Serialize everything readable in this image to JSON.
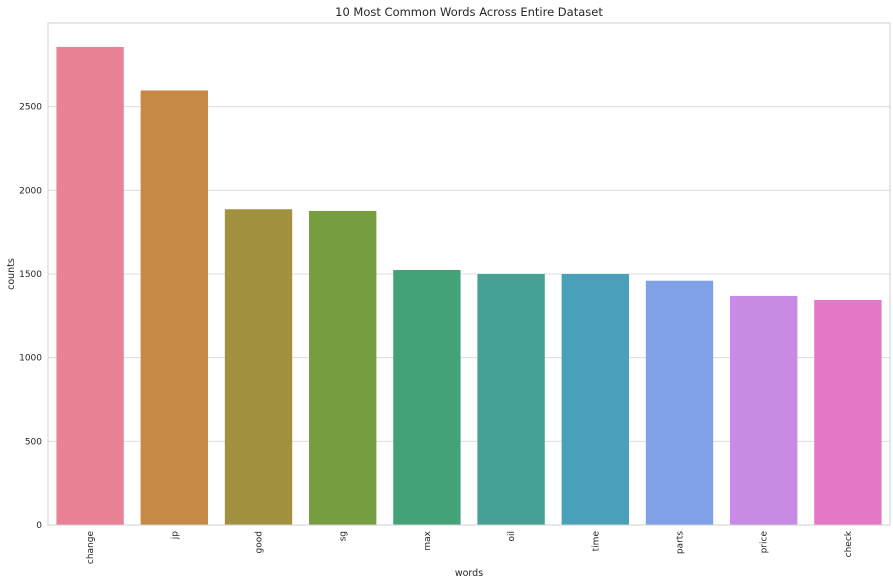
{
  "chart_data": {
    "type": "bar",
    "title": "10 Most Common Words Across Entire Dataset",
    "xlabel": "words",
    "ylabel": "counts",
    "categories": [
      "change",
      "jp",
      "good",
      "sg",
      "max",
      "oil",
      "time",
      "parts",
      "price",
      "check"
    ],
    "values": [
      2857,
      2597,
      1887,
      1877,
      1524,
      1500,
      1500,
      1460,
      1369,
      1345
    ],
    "colors": [
      "#e88294",
      "#c68a46",
      "#a29240",
      "#769d40",
      "#44a279",
      "#45a096",
      "#48a1b8",
      "#80a1e8",
      "#c98ae6",
      "#e578c6"
    ],
    "ylim": [
      0,
      3000
    ],
    "yticks": [
      0,
      500,
      1000,
      1500,
      2000,
      2500
    ],
    "grid": "horizontal",
    "legend": "none"
  }
}
